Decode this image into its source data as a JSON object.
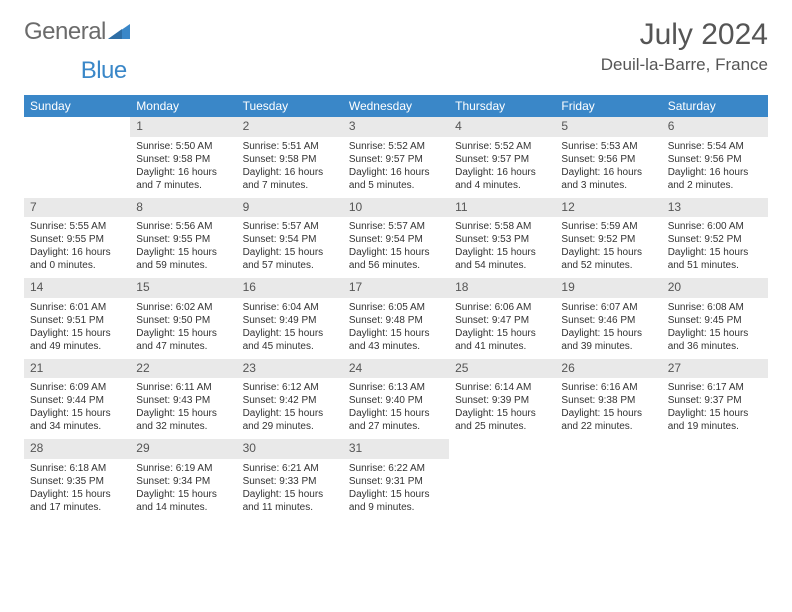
{
  "brand": {
    "word1": "General",
    "word2": "Blue"
  },
  "colors": {
    "brand_gray": "#6b6b6b",
    "brand_blue": "#3a87c8",
    "header_bg": "#3a87c8",
    "header_fg": "#ffffff",
    "daynum_bg": "#e9e9e9",
    "text": "#333333",
    "rule": "#3a87c8",
    "page_bg": "#ffffff"
  },
  "month_title": "July 2024",
  "location": "Deuil-la-Barre, France",
  "weekdays": [
    "Sunday",
    "Monday",
    "Tuesday",
    "Wednesday",
    "Thursday",
    "Friday",
    "Saturday"
  ],
  "weeks": [
    [
      {
        "n": "",
        "sunrise": "",
        "sunset": "",
        "daylight1": "",
        "daylight2": ""
      },
      {
        "n": "1",
        "sunrise": "Sunrise: 5:50 AM",
        "sunset": "Sunset: 9:58 PM",
        "daylight1": "Daylight: 16 hours",
        "daylight2": "and 7 minutes."
      },
      {
        "n": "2",
        "sunrise": "Sunrise: 5:51 AM",
        "sunset": "Sunset: 9:58 PM",
        "daylight1": "Daylight: 16 hours",
        "daylight2": "and 7 minutes."
      },
      {
        "n": "3",
        "sunrise": "Sunrise: 5:52 AM",
        "sunset": "Sunset: 9:57 PM",
        "daylight1": "Daylight: 16 hours",
        "daylight2": "and 5 minutes."
      },
      {
        "n": "4",
        "sunrise": "Sunrise: 5:52 AM",
        "sunset": "Sunset: 9:57 PM",
        "daylight1": "Daylight: 16 hours",
        "daylight2": "and 4 minutes."
      },
      {
        "n": "5",
        "sunrise": "Sunrise: 5:53 AM",
        "sunset": "Sunset: 9:56 PM",
        "daylight1": "Daylight: 16 hours",
        "daylight2": "and 3 minutes."
      },
      {
        "n": "6",
        "sunrise": "Sunrise: 5:54 AM",
        "sunset": "Sunset: 9:56 PM",
        "daylight1": "Daylight: 16 hours",
        "daylight2": "and 2 minutes."
      }
    ],
    [
      {
        "n": "7",
        "sunrise": "Sunrise: 5:55 AM",
        "sunset": "Sunset: 9:55 PM",
        "daylight1": "Daylight: 16 hours",
        "daylight2": "and 0 minutes."
      },
      {
        "n": "8",
        "sunrise": "Sunrise: 5:56 AM",
        "sunset": "Sunset: 9:55 PM",
        "daylight1": "Daylight: 15 hours",
        "daylight2": "and 59 minutes."
      },
      {
        "n": "9",
        "sunrise": "Sunrise: 5:57 AM",
        "sunset": "Sunset: 9:54 PM",
        "daylight1": "Daylight: 15 hours",
        "daylight2": "and 57 minutes."
      },
      {
        "n": "10",
        "sunrise": "Sunrise: 5:57 AM",
        "sunset": "Sunset: 9:54 PM",
        "daylight1": "Daylight: 15 hours",
        "daylight2": "and 56 minutes."
      },
      {
        "n": "11",
        "sunrise": "Sunrise: 5:58 AM",
        "sunset": "Sunset: 9:53 PM",
        "daylight1": "Daylight: 15 hours",
        "daylight2": "and 54 minutes."
      },
      {
        "n": "12",
        "sunrise": "Sunrise: 5:59 AM",
        "sunset": "Sunset: 9:52 PM",
        "daylight1": "Daylight: 15 hours",
        "daylight2": "and 52 minutes."
      },
      {
        "n": "13",
        "sunrise": "Sunrise: 6:00 AM",
        "sunset": "Sunset: 9:52 PM",
        "daylight1": "Daylight: 15 hours",
        "daylight2": "and 51 minutes."
      }
    ],
    [
      {
        "n": "14",
        "sunrise": "Sunrise: 6:01 AM",
        "sunset": "Sunset: 9:51 PM",
        "daylight1": "Daylight: 15 hours",
        "daylight2": "and 49 minutes."
      },
      {
        "n": "15",
        "sunrise": "Sunrise: 6:02 AM",
        "sunset": "Sunset: 9:50 PM",
        "daylight1": "Daylight: 15 hours",
        "daylight2": "and 47 minutes."
      },
      {
        "n": "16",
        "sunrise": "Sunrise: 6:04 AM",
        "sunset": "Sunset: 9:49 PM",
        "daylight1": "Daylight: 15 hours",
        "daylight2": "and 45 minutes."
      },
      {
        "n": "17",
        "sunrise": "Sunrise: 6:05 AM",
        "sunset": "Sunset: 9:48 PM",
        "daylight1": "Daylight: 15 hours",
        "daylight2": "and 43 minutes."
      },
      {
        "n": "18",
        "sunrise": "Sunrise: 6:06 AM",
        "sunset": "Sunset: 9:47 PM",
        "daylight1": "Daylight: 15 hours",
        "daylight2": "and 41 minutes."
      },
      {
        "n": "19",
        "sunrise": "Sunrise: 6:07 AM",
        "sunset": "Sunset: 9:46 PM",
        "daylight1": "Daylight: 15 hours",
        "daylight2": "and 39 minutes."
      },
      {
        "n": "20",
        "sunrise": "Sunrise: 6:08 AM",
        "sunset": "Sunset: 9:45 PM",
        "daylight1": "Daylight: 15 hours",
        "daylight2": "and 36 minutes."
      }
    ],
    [
      {
        "n": "21",
        "sunrise": "Sunrise: 6:09 AM",
        "sunset": "Sunset: 9:44 PM",
        "daylight1": "Daylight: 15 hours",
        "daylight2": "and 34 minutes."
      },
      {
        "n": "22",
        "sunrise": "Sunrise: 6:11 AM",
        "sunset": "Sunset: 9:43 PM",
        "daylight1": "Daylight: 15 hours",
        "daylight2": "and 32 minutes."
      },
      {
        "n": "23",
        "sunrise": "Sunrise: 6:12 AM",
        "sunset": "Sunset: 9:42 PM",
        "daylight1": "Daylight: 15 hours",
        "daylight2": "and 29 minutes."
      },
      {
        "n": "24",
        "sunrise": "Sunrise: 6:13 AM",
        "sunset": "Sunset: 9:40 PM",
        "daylight1": "Daylight: 15 hours",
        "daylight2": "and 27 minutes."
      },
      {
        "n": "25",
        "sunrise": "Sunrise: 6:14 AM",
        "sunset": "Sunset: 9:39 PM",
        "daylight1": "Daylight: 15 hours",
        "daylight2": "and 25 minutes."
      },
      {
        "n": "26",
        "sunrise": "Sunrise: 6:16 AM",
        "sunset": "Sunset: 9:38 PM",
        "daylight1": "Daylight: 15 hours",
        "daylight2": "and 22 minutes."
      },
      {
        "n": "27",
        "sunrise": "Sunrise: 6:17 AM",
        "sunset": "Sunset: 9:37 PM",
        "daylight1": "Daylight: 15 hours",
        "daylight2": "and 19 minutes."
      }
    ],
    [
      {
        "n": "28",
        "sunrise": "Sunrise: 6:18 AM",
        "sunset": "Sunset: 9:35 PM",
        "daylight1": "Daylight: 15 hours",
        "daylight2": "and 17 minutes."
      },
      {
        "n": "29",
        "sunrise": "Sunrise: 6:19 AM",
        "sunset": "Sunset: 9:34 PM",
        "daylight1": "Daylight: 15 hours",
        "daylight2": "and 14 minutes."
      },
      {
        "n": "30",
        "sunrise": "Sunrise: 6:21 AM",
        "sunset": "Sunset: 9:33 PM",
        "daylight1": "Daylight: 15 hours",
        "daylight2": "and 11 minutes."
      },
      {
        "n": "31",
        "sunrise": "Sunrise: 6:22 AM",
        "sunset": "Sunset: 9:31 PM",
        "daylight1": "Daylight: 15 hours",
        "daylight2": "and 9 minutes."
      },
      {
        "n": "",
        "sunrise": "",
        "sunset": "",
        "daylight1": "",
        "daylight2": ""
      },
      {
        "n": "",
        "sunrise": "",
        "sunset": "",
        "daylight1": "",
        "daylight2": ""
      },
      {
        "n": "",
        "sunrise": "",
        "sunset": "",
        "daylight1": "",
        "daylight2": ""
      }
    ]
  ]
}
